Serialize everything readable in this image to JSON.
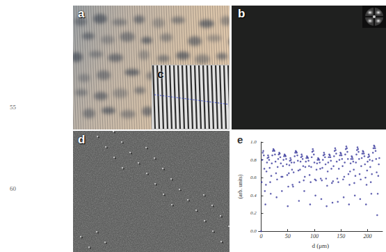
{
  "line_numbers": [
    "55",
    "60"
  ],
  "panels": [
    {
      "label": "a"
    },
    {
      "label": "b"
    },
    {
      "label": "c"
    },
    {
      "label": "d"
    }
  ],
  "chart_data": {
    "type": "scatter",
    "title": "e",
    "xlabel": "d (μm)",
    "ylabel": "(arb. units)",
    "color": "#3a3a9c",
    "marker": "circle",
    "grid": false,
    "xlim": [
      -5,
      228
    ],
    "xticks": [
      0,
      50,
      100,
      150,
      200
    ],
    "ylim": [
      0,
      1
    ],
    "yticks": [
      {
        "value": 0,
        "label": "0.0"
      },
      0.2,
      0.4,
      0.6,
      0.8,
      {
        "value": 1,
        "label": "1.0"
      }
    ],
    "x": [
      0,
      1,
      2,
      3,
      4,
      5,
      6,
      7,
      8,
      9,
      10,
      11,
      12,
      13,
      14,
      15,
      16,
      17,
      18,
      19,
      20,
      21,
      22,
      23,
      24,
      25,
      26,
      27,
      28,
      29,
      30,
      31,
      32,
      33,
      34,
      35,
      36,
      37,
      38,
      39,
      40,
      41,
      42,
      43,
      44,
      45,
      46,
      47,
      48,
      49,
      50,
      51,
      52,
      53,
      54,
      55,
      56,
      57,
      58,
      59,
      60,
      61,
      62,
      63,
      64,
      65,
      66,
      67,
      68,
      69,
      70,
      71,
      72,
      73,
      74,
      75,
      76,
      77,
      78,
      79,
      80,
      81,
      82,
      83,
      84,
      85,
      86,
      87,
      88,
      89,
      90,
      91,
      92,
      93,
      94,
      95,
      96,
      97,
      98,
      99,
      100,
      101,
      102,
      103,
      104,
      105,
      106,
      107,
      108,
      109,
      110,
      111,
      112,
      113,
      114,
      115,
      116,
      117,
      118,
      119,
      120,
      121,
      122,
      123,
      124,
      125,
      126,
      127,
      128,
      129,
      130,
      131,
      132,
      133,
      134,
      135,
      136,
      137,
      138,
      139,
      140,
      141,
      142,
      143,
      144,
      145,
      146,
      147,
      148,
      149,
      150,
      151,
      152,
      153,
      154,
      155,
      156,
      157,
      158,
      159,
      160,
      161,
      162,
      163,
      164,
      165,
      166,
      167,
      168,
      169,
      170,
      171,
      172,
      173,
      174,
      175,
      176,
      177,
      178,
      179,
      180,
      181,
      182,
      183,
      184,
      185,
      186,
      187,
      188,
      189,
      190,
      191,
      192,
      193,
      194,
      195,
      196,
      197,
      198,
      199,
      200,
      201,
      202,
      203,
      204,
      205,
      206,
      207,
      208,
      209,
      210,
      211,
      212,
      213,
      214,
      215,
      216,
      217,
      218,
      219,
      220,
      221,
      222
    ],
    "values": [
      0.0,
      0.55,
      0.8,
      0.88,
      0.9,
      0.85,
      0.7,
      0.45,
      0.3,
      0.52,
      0.67,
      0.77,
      0.82,
      0.85,
      0.83,
      0.8,
      0.71,
      0.55,
      0.42,
      0.62,
      0.76,
      0.85,
      0.9,
      0.92,
      0.91,
      0.9,
      0.86,
      0.78,
      0.65,
      0.38,
      0.58,
      0.72,
      0.81,
      0.86,
      0.88,
      0.87,
      0.83,
      0.76,
      0.61,
      0.45,
      0.61,
      0.73,
      0.8,
      0.84,
      0.86,
      0.85,
      0.84,
      0.81,
      0.75,
      0.63,
      0.28,
      0.5,
      0.65,
      0.74,
      0.79,
      0.82,
      0.8,
      0.77,
      0.69,
      0.52,
      0.5,
      0.66,
      0.77,
      0.84,
      0.88,
      0.9,
      0.89,
      0.88,
      0.85,
      0.79,
      0.68,
      0.34,
      0.55,
      0.69,
      0.78,
      0.83,
      0.86,
      0.84,
      0.81,
      0.73,
      0.57,
      0.45,
      0.61,
      0.72,
      0.78,
      0.82,
      0.84,
      0.83,
      0.82,
      0.79,
      0.73,
      0.63,
      0.3,
      0.55,
      0.72,
      0.83,
      0.89,
      0.92,
      0.9,
      0.86,
      0.77,
      0.58,
      0.4,
      0.57,
      0.69,
      0.76,
      0.8,
      0.82,
      0.81,
      0.8,
      0.77,
      0.7,
      0.59,
      0.36,
      0.57,
      0.71,
      0.8,
      0.85,
      0.88,
      0.86,
      0.83,
      0.75,
      0.59,
      0.28,
      0.51,
      0.67,
      0.77,
      0.83,
      0.86,
      0.85,
      0.83,
      0.79,
      0.7,
      0.54,
      0.32,
      0.56,
      0.73,
      0.84,
      0.9,
      0.93,
      0.91,
      0.87,
      0.78,
      0.59,
      0.33,
      0.55,
      0.7,
      0.8,
      0.85,
      0.88,
      0.87,
      0.85,
      0.81,
      0.73,
      0.58,
      0.38,
      0.61,
      0.77,
      0.86,
      0.92,
      0.95,
      0.93,
      0.89,
      0.81,
      0.64,
      0.3,
      0.52,
      0.67,
      0.76,
      0.81,
      0.84,
      0.83,
      0.81,
      0.78,
      0.69,
      0.54,
      0.4,
      0.62,
      0.77,
      0.86,
      0.91,
      0.94,
      0.92,
      0.89,
      0.81,
      0.64,
      0.36,
      0.58,
      0.73,
      0.82,
      0.87,
      0.9,
      0.89,
      0.87,
      0.84,
      0.75,
      0.6,
      0.3,
      0.52,
      0.68,
      0.78,
      0.83,
      0.86,
      0.84,
      0.8,
      0.72,
      0.55,
      0.42,
      0.64,
      0.79,
      0.88,
      0.93,
      0.96,
      0.95,
      0.93,
      0.9,
      0.81,
      0.66,
      0.18,
      0.42,
      0.62,
      0.75,
      0.82
    ]
  }
}
